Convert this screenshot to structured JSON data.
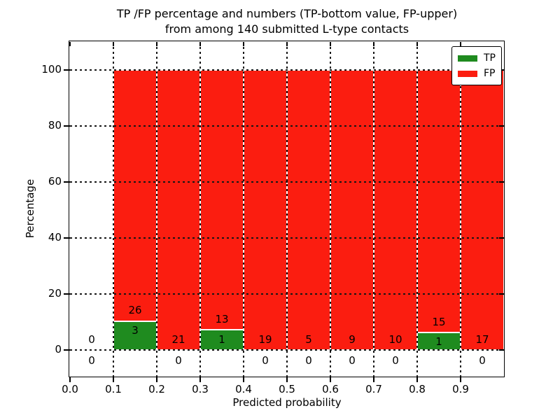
{
  "figure": {
    "background": "#ffffff"
  },
  "chart_data": {
    "type": "bar",
    "stacked": true,
    "title_lines": [
      "TP /FP percentage and numbers (TP-bottom value, FP-upper)",
      "from among 140 submitted L-type contacts"
    ],
    "xlabel": "Predicted probability",
    "ylabel": "Percentage",
    "xlim": [
      0.0,
      1.0
    ],
    "ylim": [
      -9.5,
      110
    ],
    "x_ticks": [
      "0.0",
      "0.1",
      "0.2",
      "0.3",
      "0.4",
      "0.5",
      "0.6",
      "0.7",
      "0.8",
      "0.9"
    ],
    "y_ticks": [
      0,
      20,
      40,
      60,
      80,
      100
    ],
    "grid": true,
    "total_contacts": 140,
    "legend": {
      "position": "upper right",
      "entries": [
        {
          "label": "TP",
          "color": "#1f8b1f"
        },
        {
          "label": "FP",
          "color": "#fb1d10"
        }
      ]
    },
    "bins": [
      {
        "range": [
          0.0,
          0.1
        ],
        "tp": 0,
        "fp": 0
      },
      {
        "range": [
          0.1,
          0.2
        ],
        "tp": 3,
        "fp": 26
      },
      {
        "range": [
          0.2,
          0.3
        ],
        "tp": 0,
        "fp": 21
      },
      {
        "range": [
          0.3,
          0.4
        ],
        "tp": 1,
        "fp": 13
      },
      {
        "range": [
          0.4,
          0.5
        ],
        "tp": 0,
        "fp": 19
      },
      {
        "range": [
          0.5,
          0.6
        ],
        "tp": 0,
        "fp": 5
      },
      {
        "range": [
          0.6,
          0.7
        ],
        "tp": 0,
        "fp": 9
      },
      {
        "range": [
          0.7,
          0.8
        ],
        "tp": 0,
        "fp": 10
      },
      {
        "range": [
          0.8,
          0.9
        ],
        "tp": 1,
        "fp": 15
      },
      {
        "range": [
          0.9,
          1.0
        ],
        "tp": 0,
        "fp": 17
      }
    ],
    "label_colors": {
      "text": "#000000"
    },
    "grid_color": "#161616",
    "spine_color": "#000000"
  }
}
